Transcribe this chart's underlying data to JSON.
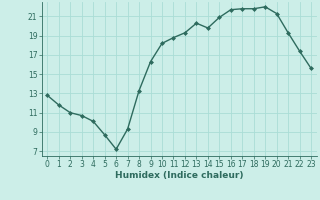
{
  "xlabel": "Humidex (Indice chaleur)",
  "x": [
    0,
    1,
    2,
    3,
    4,
    5,
    6,
    7,
    8,
    9,
    10,
    11,
    12,
    13,
    14,
    15,
    16,
    17,
    18,
    19,
    20,
    21,
    22,
    23
  ],
  "y": [
    12.8,
    11.8,
    11.0,
    10.7,
    10.1,
    8.7,
    7.2,
    9.3,
    13.3,
    16.3,
    18.2,
    18.8,
    19.3,
    20.3,
    19.8,
    20.9,
    21.7,
    21.8,
    21.8,
    22.0,
    21.3,
    19.3,
    17.4,
    15.6
  ],
  "line_color": "#2e6b5e",
  "marker": "D",
  "marker_size": 2.0,
  "bg_color": "#cceee8",
  "grid_color": "#aaddd6",
  "ylim": [
    6.5,
    22.5
  ],
  "yticks": [
    7,
    9,
    11,
    13,
    15,
    17,
    19,
    21
  ],
  "xlim": [
    -0.5,
    23.5
  ],
  "xticks": [
    0,
    1,
    2,
    3,
    4,
    5,
    6,
    7,
    8,
    9,
    10,
    11,
    12,
    13,
    14,
    15,
    16,
    17,
    18,
    19,
    20,
    21,
    22,
    23
  ],
  "tick_label_size": 5.5,
  "xlabel_size": 6.5,
  "line_width": 1.0
}
